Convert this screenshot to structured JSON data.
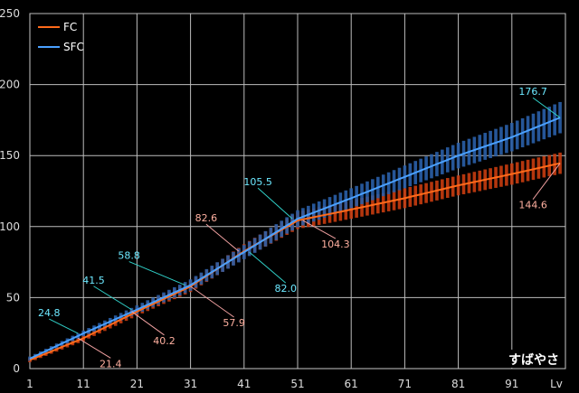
{
  "chart_data": {
    "type": "line",
    "title": "",
    "xlabel": "Lv",
    "ylabel": "",
    "xlim": [
      1,
      101
    ],
    "ylim": [
      0,
      250
    ],
    "x_ticks": [
      1,
      11,
      21,
      31,
      41,
      51,
      61,
      71,
      81,
      91
    ],
    "y_ticks": [
      0,
      50,
      100,
      150,
      200,
      250
    ],
    "grid": true,
    "legend_position": "top-left",
    "watermark": "すばやさ",
    "series": [
      {
        "name": "FC",
        "color": "#ff6a1a",
        "band_color": "#c83c10",
        "x": [
          1,
          11,
          21,
          31,
          41,
          51,
          61,
          71,
          81,
          91,
          100
        ],
        "y": [
          6,
          21.4,
          40.2,
          57.9,
          82.6,
          104.3,
          112,
          120,
          129,
          137,
          144.6
        ],
        "band_width": [
          3,
          4,
          6,
          8,
          10,
          12,
          13,
          14,
          14,
          15,
          15
        ]
      },
      {
        "name": "SFC",
        "color": "#4aa0ff",
        "band_color": "#2a5fa8",
        "x": [
          1,
          11,
          21,
          31,
          41,
          51,
          61,
          71,
          81,
          91,
          100
        ],
        "y": [
          7,
          24.8,
          41.5,
          58.8,
          82.0,
          105.5,
          120,
          135,
          150,
          163,
          176.7
        ],
        "band_width": [
          3,
          4,
          6,
          8,
          10,
          12,
          14,
          16,
          18,
          20,
          22
        ]
      }
    ],
    "annotations": [
      {
        "x": 10,
        "y": 24.8,
        "text": "24.8",
        "series": "SFC"
      },
      {
        "x": 20,
        "y": 41.5,
        "text": "41.5",
        "series": "SFC"
      },
      {
        "x": 30,
        "y": 58.8,
        "text": "58.8",
        "series": "SFC"
      },
      {
        "x": 42,
        "y": 82.0,
        "text": "82.0",
        "series": "SFC"
      },
      {
        "x": 50,
        "y": 105.5,
        "text": "105.5",
        "series": "SFC"
      },
      {
        "x": 100,
        "y": 176.7,
        "text": "176.7",
        "series": "SFC"
      },
      {
        "x": 10,
        "y": 21.4,
        "text": "21.4",
        "series": "FC"
      },
      {
        "x": 20,
        "y": 40.2,
        "text": "40.2",
        "series": "FC"
      },
      {
        "x": 31,
        "y": 57.9,
        "text": "57.9",
        "series": "FC"
      },
      {
        "x": 40,
        "y": 82.6,
        "text": "82.6",
        "series": "FC"
      },
      {
        "x": 52,
        "y": 104.3,
        "text": "104.3",
        "series": "FC"
      },
      {
        "x": 100,
        "y": 144.6,
        "text": "144.6",
        "series": "FC"
      }
    ]
  }
}
